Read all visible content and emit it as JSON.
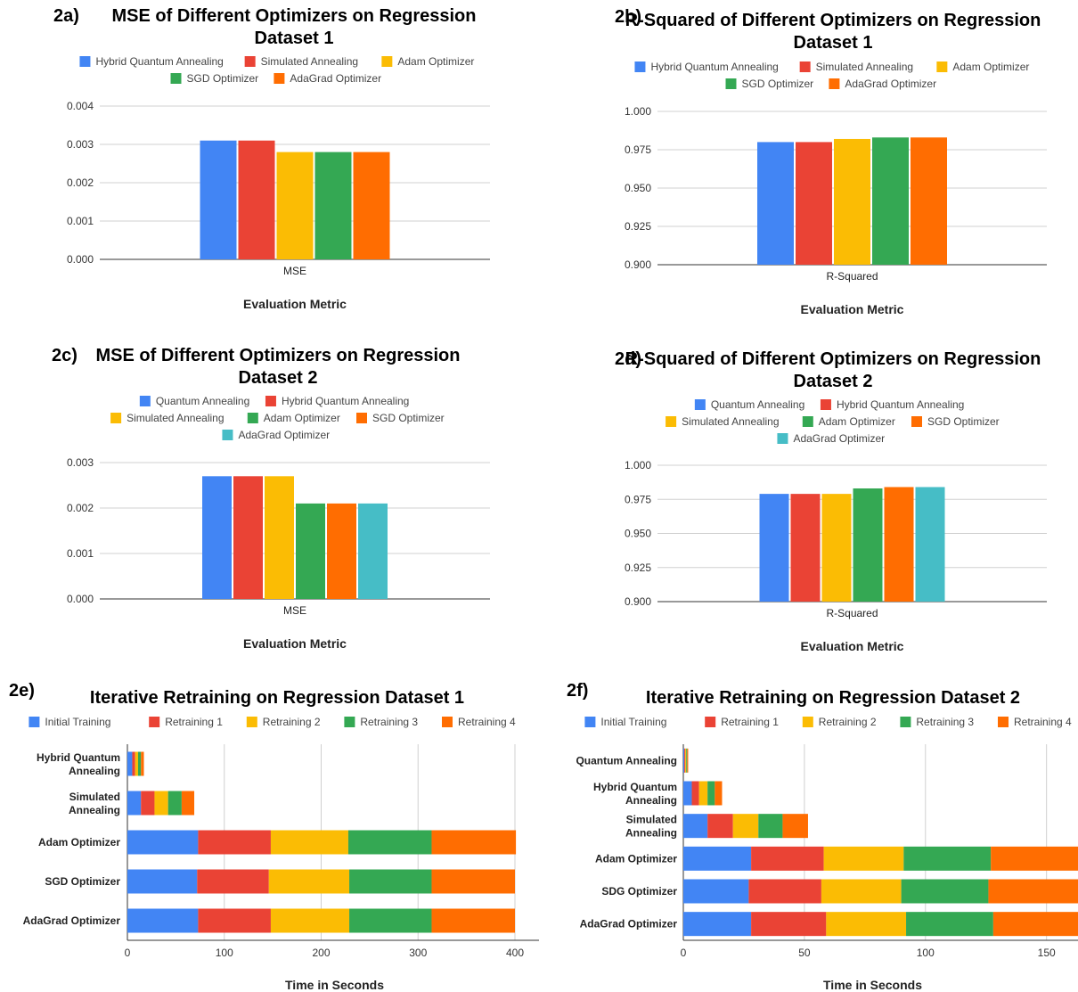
{
  "colors": {
    "blue": "#4285F4",
    "red": "#EA4335",
    "yellow": "#FBBC04",
    "green": "#34A853",
    "orange": "#FF6D01",
    "teal": "#46BDC6"
  },
  "chart_data": [
    {
      "id": "2a",
      "panel_label": "2a)",
      "type": "bar",
      "title": "MSE of Different Optimizers on Regression Dataset 1",
      "xlabel": "Evaluation Metric",
      "ylabel": "",
      "categories": [
        "MSE"
      ],
      "ylim": [
        0,
        0.004
      ],
      "yticks": [
        "0.000",
        "0.001",
        "0.002",
        "0.003",
        "0.004"
      ],
      "grid": true,
      "legend_position": "top",
      "series": [
        {
          "name": "Hybrid Quantum Annealing",
          "values": [
            0.0031
          ],
          "color": "#4285F4"
        },
        {
          "name": "Simulated Annealing",
          "values": [
            0.0031
          ],
          "color": "#EA4335"
        },
        {
          "name": "Adam Optimizer",
          "values": [
            0.0028
          ],
          "color": "#FBBC04"
        },
        {
          "name": "SGD Optimizer",
          "values": [
            0.0028
          ],
          "color": "#34A853"
        },
        {
          "name": "AdaGrad Optimizer",
          "values": [
            0.0028
          ],
          "color": "#FF6D01"
        }
      ]
    },
    {
      "id": "2b",
      "panel_label": "2b)",
      "type": "bar",
      "title": "R-Squared of Different Optimizers on Regression Dataset 1",
      "xlabel": "Evaluation Metric",
      "ylabel": "",
      "categories": [
        "R-Squared"
      ],
      "ylim": [
        0.9,
        1.0
      ],
      "yticks": [
        "0.900",
        "0.925",
        "0.950",
        "0.975",
        "1.000"
      ],
      "grid": true,
      "legend_position": "top",
      "series": [
        {
          "name": "Hybrid Quantum Annealing",
          "values": [
            0.98
          ],
          "color": "#4285F4"
        },
        {
          "name": "Simulated Annealing",
          "values": [
            0.98
          ],
          "color": "#EA4335"
        },
        {
          "name": "Adam Optimizer",
          "values": [
            0.982
          ],
          "color": "#FBBC04"
        },
        {
          "name": "SGD Optimizer",
          "values": [
            0.983
          ],
          "color": "#34A853"
        },
        {
          "name": "AdaGrad Optimizer",
          "values": [
            0.983
          ],
          "color": "#FF6D01"
        }
      ]
    },
    {
      "id": "2c",
      "panel_label": "2c)",
      "type": "bar",
      "title": "MSE of Different Optimizers on Regression Dataset 2",
      "xlabel": "Evaluation Metric",
      "ylabel": "",
      "categories": [
        "MSE"
      ],
      "ylim": [
        0,
        0.003
      ],
      "yticks": [
        "0.000",
        "0.001",
        "0.002",
        "0.003"
      ],
      "grid": true,
      "legend_position": "top",
      "series": [
        {
          "name": "Quantum Annealing",
          "values": [
            0.0027
          ],
          "color": "#4285F4"
        },
        {
          "name": "Hybrid Quantum Annealing",
          "values": [
            0.0027
          ],
          "color": "#EA4335"
        },
        {
          "name": "Simulated Annealing",
          "values": [
            0.0027
          ],
          "color": "#FBBC04"
        },
        {
          "name": "Adam Optimizer",
          "values": [
            0.0021
          ],
          "color": "#34A853"
        },
        {
          "name": "SGD Optimizer",
          "values": [
            0.0021
          ],
          "color": "#FF6D01"
        },
        {
          "name": "AdaGrad Optimizer",
          "values": [
            0.0021
          ],
          "color": "#46BDC6"
        }
      ]
    },
    {
      "id": "2d",
      "panel_label": "2d)",
      "type": "bar",
      "title": "R-Squared of Different Optimizers on Regression Dataset 2",
      "xlabel": "Evaluation Metric",
      "ylabel": "",
      "categories": [
        "R-Squared"
      ],
      "ylim": [
        0.9,
        1.0
      ],
      "yticks": [
        "0.900",
        "0.925",
        "0.950",
        "0.975",
        "1.000"
      ],
      "grid": true,
      "legend_position": "top",
      "series": [
        {
          "name": "Quantum Annealing",
          "values": [
            0.979
          ],
          "color": "#4285F4"
        },
        {
          "name": "Hybrid Quantum Annealing",
          "values": [
            0.979
          ],
          "color": "#EA4335"
        },
        {
          "name": "Simulated Annealing",
          "values": [
            0.979
          ],
          "color": "#FBBC04"
        },
        {
          "name": "Adam Optimizer",
          "values": [
            0.983
          ],
          "color": "#34A853"
        },
        {
          "name": "SGD Optimizer",
          "values": [
            0.984
          ],
          "color": "#FF6D01"
        },
        {
          "name": "AdaGrad Optimizer",
          "values": [
            0.984
          ],
          "color": "#46BDC6"
        }
      ]
    },
    {
      "id": "2e",
      "panel_label": "2e)",
      "type": "bar",
      "orientation": "horizontal",
      "stacked": true,
      "title": "Iterative Retraining on Regression Dataset 1",
      "xlabel": "Time in Seconds",
      "ylabel": "",
      "categories": [
        "Hybrid Quantum Annealing",
        "Simulated Annealing",
        "Adam Optimizer",
        "SGD Optimizer",
        "AdaGrad Optimizer"
      ],
      "xlim": [
        0,
        400
      ],
      "xticks": [
        "0",
        "100",
        "200",
        "300",
        "400"
      ],
      "grid": true,
      "legend_position": "top",
      "series": [
        {
          "name": "Initial Training",
          "values": [
            5,
            14,
            73,
            72,
            73
          ],
          "color": "#4285F4"
        },
        {
          "name": "Retraining 1",
          "values": [
            3,
            14,
            75,
            74,
            75
          ],
          "color": "#EA4335"
        },
        {
          "name": "Retraining 2",
          "values": [
            3,
            14,
            80,
            83,
            81
          ],
          "color": "#FBBC04"
        },
        {
          "name": "Retraining 3",
          "values": [
            3,
            14,
            86,
            85,
            85
          ],
          "color": "#34A853"
        },
        {
          "name": "Retraining 4",
          "values": [
            3,
            13,
            87,
            86,
            86
          ],
          "color": "#FF6D01"
        }
      ]
    },
    {
      "id": "2f",
      "panel_label": "2f)",
      "type": "bar",
      "orientation": "horizontal",
      "stacked": true,
      "title": "Iterative Retraining on Regression Dataset 2",
      "xlabel": "Time in Seconds",
      "ylabel": "",
      "categories": [
        "Quantum Annealing",
        "Hybrid Quantum Annealing",
        "Simulated Annealing",
        "Adam Optimizer",
        "SDG Optimizer",
        "AdaGrad Optimizer"
      ],
      "xlim": [
        0,
        163
      ],
      "xticks": [
        "0",
        "50",
        "100",
        "150"
      ],
      "grid": true,
      "legend_position": "top",
      "series": [
        {
          "name": "Initial Training",
          "values": [
            0.4,
            3.5,
            10,
            28,
            27,
            28
          ],
          "color": "#4285F4"
        },
        {
          "name": "Retraining 1",
          "values": [
            0.4,
            3,
            10.5,
            30,
            30,
            31
          ],
          "color": "#EA4335"
        },
        {
          "name": "Retraining 2",
          "values": [
            0.4,
            3.5,
            10.5,
            33,
            33,
            33
          ],
          "color": "#FBBC04"
        },
        {
          "name": "Retraining 3",
          "values": [
            0.4,
            3,
            10,
            36,
            36,
            36
          ],
          "color": "#34A853"
        },
        {
          "name": "Retraining 4",
          "values": [
            0.4,
            3,
            10.5,
            37,
            37,
            36
          ],
          "color": "#FF6D01"
        }
      ]
    }
  ]
}
